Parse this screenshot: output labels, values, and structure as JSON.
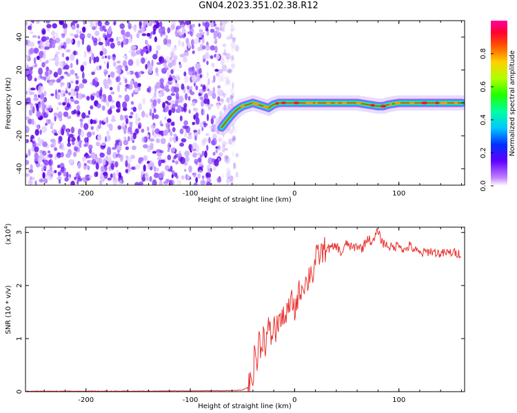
{
  "title": "GN04.2023.351.02.38.R12",
  "chart_data": [
    {
      "type": "heatmap",
      "xlabel": "Height of straight line (km)",
      "ylabel": "Frequency (Hz)",
      "xlim": [
        -258,
        163
      ],
      "ylim": [
        -50,
        50
      ],
      "x_ticks": [
        -200,
        -100,
        0,
        100
      ],
      "y_ticks": [
        -40,
        -20,
        0,
        20,
        40
      ],
      "noise_region_x": [
        -258,
        -65
      ],
      "ridge": {
        "x": [
          -70,
          -65,
          -60,
          -55,
          -50,
          -45,
          -40,
          -35,
          -30,
          -25,
          -20,
          -15,
          -10,
          -5,
          0,
          20,
          40,
          60,
          70,
          80,
          85,
          90,
          100,
          120,
          140,
          160
        ],
        "y": [
          -15,
          -11,
          -7,
          -4,
          -2,
          -1,
          0,
          -1,
          -2,
          -3,
          -1,
          0,
          0,
          0,
          0,
          0,
          0,
          0,
          -1,
          -2,
          -2,
          -1,
          0,
          0,
          0,
          0
        ]
      },
      "colorbar": {
        "label": "Normalized spectral amplitude",
        "range": [
          0.0,
          1.0
        ],
        "ticks": [
          "0.0",
          "0.2",
          "0.4",
          "0.6",
          "0.8"
        ]
      }
    },
    {
      "type": "line",
      "xlabel": "Height of straight line (km)",
      "ylabel": "SNR (10 * v/v)",
      "y_scale_label": "(x10",
      "y_scale_exp": "4",
      "y_scale_close": ")",
      "xlim": [
        -258,
        163
      ],
      "ylim": [
        0,
        3.1
      ],
      "x_ticks": [
        -200,
        -100,
        0,
        100
      ],
      "y_ticks": [
        0,
        1,
        2,
        3
      ],
      "line_color": "#e8302c",
      "series": [
        {
          "x": [
            -258,
            -150,
            -60,
            -50,
            -45,
            -40,
            -38,
            -36,
            -34,
            -32,
            -30,
            -28,
            -25,
            -22,
            -20,
            -18,
            -15,
            -12,
            -10,
            -8,
            -5,
            -2,
            0,
            3,
            5,
            8,
            10,
            12,
            15,
            18,
            20,
            25,
            30,
            35,
            40,
            45,
            50,
            55,
            60,
            65,
            70,
            75,
            80,
            82,
            85,
            90,
            95,
            100,
            105,
            110,
            120,
            130,
            140,
            150,
            160
          ],
          "y": [
            0.01,
            0.01,
            0.02,
            0.03,
            0.08,
            0.3,
            0.8,
            0.5,
            1.0,
            0.8,
            1.1,
            0.9,
            1.2,
            1.0,
            1.3,
            1.1,
            1.4,
            1.3,
            1.5,
            1.4,
            1.6,
            1.7,
            1.5,
            1.8,
            1.9,
            2.0,
            2.1,
            2.0,
            2.3,
            2.2,
            2.5,
            2.6,
            2.7,
            2.7,
            2.75,
            2.6,
            2.8,
            2.7,
            2.75,
            2.7,
            2.9,
            2.8,
            3.05,
            2.9,
            2.8,
            2.75,
            2.7,
            2.8,
            2.65,
            2.75,
            2.6,
            2.65,
            2.6,
            2.62,
            2.6
          ]
        }
      ]
    }
  ]
}
